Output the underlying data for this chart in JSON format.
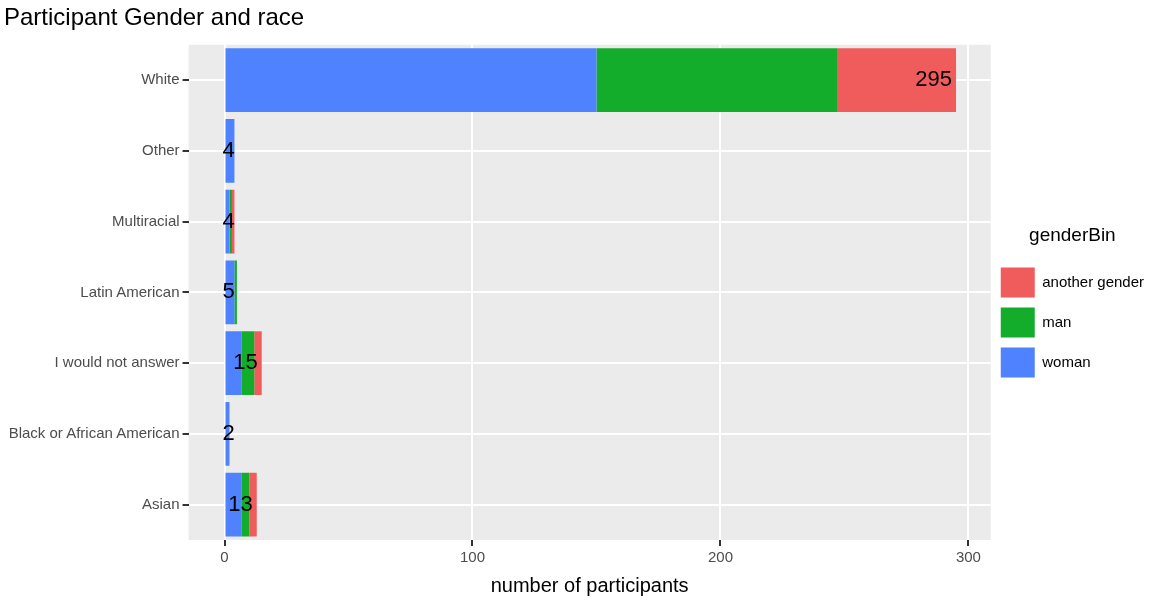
{
  "chart_data": {
    "type": "bar",
    "orientation": "horizontal",
    "stacked": true,
    "title": "Participant Gender and race",
    "xlabel": "number of participants",
    "legend_title": "genderBin",
    "legend": "right",
    "grid": true,
    "categories": [
      "White",
      "Other",
      "Multiracial",
      "Latin American",
      "I would not answer",
      "Black or African American",
      "Asian"
    ],
    "series": [
      {
        "name": "woman",
        "color": "#4f82ff",
        "values": [
          150,
          4,
          2,
          4,
          7,
          2,
          7
        ]
      },
      {
        "name": "man",
        "color": "#13ad2b",
        "values": [
          97,
          0,
          1,
          1,
          5,
          0,
          3
        ]
      },
      {
        "name": "another gender",
        "color": "#f05b5b",
        "values": [
          48,
          0,
          1,
          0,
          3,
          0,
          3
        ]
      }
    ],
    "totals": [
      "295",
      "4",
      "4",
      "5",
      "15",
      "2",
      "13"
    ],
    "xlim": [
      -14.5,
      309
    ],
    "xticks": [
      0,
      100,
      200,
      300
    ]
  }
}
